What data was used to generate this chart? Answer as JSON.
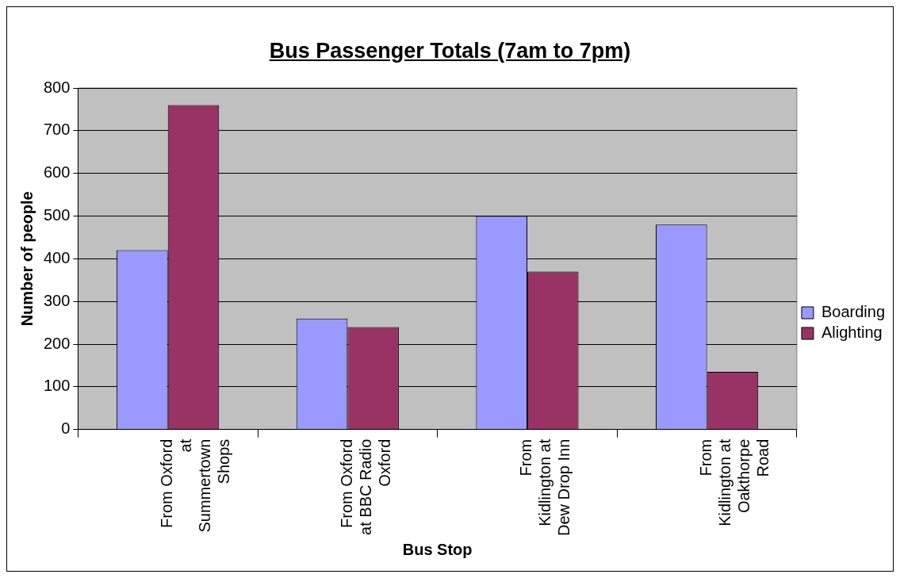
{
  "chart_data": {
    "type": "bar",
    "title": "Bus Passenger Totals (7am to 7pm)",
    "xlabel": "Bus Stop",
    "ylabel": "Number of people",
    "categories": [
      "From Oxford at Summertown Shops",
      "From Oxford at BBC Radio Oxford",
      "From Kidlington at Dew Drop Inn",
      "From Kidlington at Oakthorpe Road"
    ],
    "series": [
      {
        "name": "Boarding",
        "color": "#9999ff",
        "values": [
          420,
          260,
          500,
          480
        ]
      },
      {
        "name": "Alighting",
        "color": "#993366",
        "values": [
          760,
          240,
          370,
          135
        ]
      }
    ],
    "ylim": [
      0,
      800
    ],
    "yticks": [
      0,
      100,
      200,
      300,
      400,
      500,
      600,
      700,
      800
    ],
    "grid": "y",
    "legend": "right"
  }
}
